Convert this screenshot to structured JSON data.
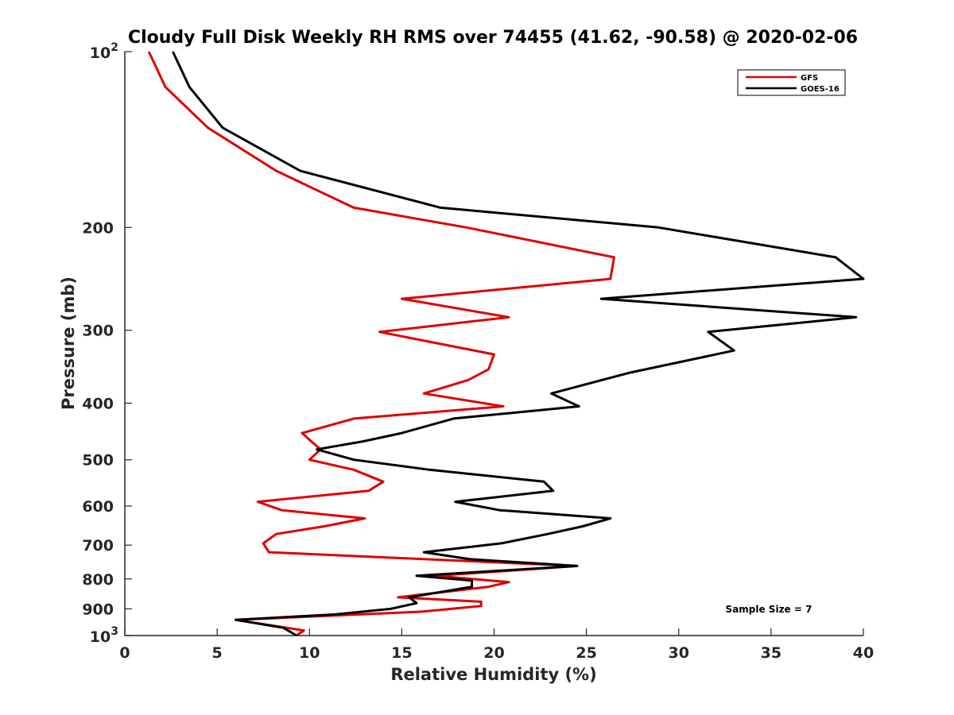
{
  "chart_data": {
    "type": "line",
    "title": "Cloudy Full Disk Weekly RH RMS over 74455 (41.62, -90.58) @ 2020-02-06",
    "xlabel": "Relative Humidity (%)",
    "ylabel": "Pressure (mb)",
    "xlim": [
      0,
      40
    ],
    "ylim": [
      100,
      1000
    ],
    "yscale": "log",
    "y_reversed": true,
    "grid": false,
    "legend_position": "top-right",
    "x_ticks": [
      "0",
      "5",
      "10",
      "15",
      "20",
      "25",
      "30",
      "35",
      "40"
    ],
    "y_ticks": [
      {
        "value": 100,
        "base": "10",
        "exp": "2"
      },
      {
        "value": 200,
        "label": "200"
      },
      {
        "value": 300,
        "label": "300"
      },
      {
        "value": 400,
        "label": "400"
      },
      {
        "value": 500,
        "label": "500"
      },
      {
        "value": 600,
        "label": "600"
      },
      {
        "value": 700,
        "label": "700"
      },
      {
        "value": 800,
        "label": "800"
      },
      {
        "value": 900,
        "label": "900"
      },
      {
        "value": 1000,
        "base": "10",
        "exp": "3"
      }
    ],
    "annotation": "Sample Size = 7",
    "series": [
      {
        "name": "GFS",
        "color": "#e00000",
        "points": [
          [
            1.3,
            100
          ],
          [
            2.2,
            115
          ],
          [
            4.5,
            135
          ],
          [
            8.2,
            160
          ],
          [
            12.4,
            185
          ],
          [
            18.5,
            200
          ],
          [
            26.5,
            225
          ],
          [
            26.3,
            245
          ],
          [
            15.0,
            265
          ],
          [
            20.8,
            285
          ],
          [
            13.8,
            302
          ],
          [
            20.0,
            330
          ],
          [
            19.7,
            350
          ],
          [
            18.6,
            365
          ],
          [
            16.2,
            385
          ],
          [
            20.5,
            405
          ],
          [
            12.4,
            425
          ],
          [
            9.6,
            450
          ],
          [
            10.1,
            465
          ],
          [
            10.6,
            480
          ],
          [
            10.0,
            500
          ],
          [
            12.4,
            520
          ],
          [
            14.0,
            545
          ],
          [
            13.2,
            565
          ],
          [
            7.2,
            590
          ],
          [
            8.5,
            610
          ],
          [
            13.0,
            630
          ],
          [
            10.8,
            650
          ],
          [
            8.2,
            670
          ],
          [
            7.5,
            695
          ],
          [
            7.8,
            720
          ],
          [
            24.5,
            760
          ],
          [
            16.8,
            790
          ],
          [
            20.8,
            810
          ],
          [
            19.7,
            825
          ],
          [
            14.8,
            860
          ],
          [
            19.3,
            875
          ],
          [
            19.3,
            890
          ],
          [
            16.1,
            910
          ],
          [
            6.0,
            940
          ],
          [
            9.7,
            980
          ],
          [
            9.3,
            1000
          ]
        ]
      },
      {
        "name": "GOES-16",
        "color": "#000000",
        "points": [
          [
            2.6,
            100
          ],
          [
            3.5,
            115
          ],
          [
            5.3,
            135
          ],
          [
            9.5,
            160
          ],
          [
            17.1,
            185
          ],
          [
            28.9,
            200
          ],
          [
            38.5,
            225
          ],
          [
            40.0,
            245
          ],
          [
            25.8,
            265
          ],
          [
            39.6,
            285
          ],
          [
            31.6,
            302
          ],
          [
            33.0,
            325
          ],
          [
            27.3,
            355
          ],
          [
            23.1,
            385
          ],
          [
            24.6,
            405
          ],
          [
            17.8,
            425
          ],
          [
            15.0,
            450
          ],
          [
            12.9,
            465
          ],
          [
            10.4,
            480
          ],
          [
            12.4,
            500
          ],
          [
            16.5,
            520
          ],
          [
            22.7,
            545
          ],
          [
            23.2,
            565
          ],
          [
            17.9,
            590
          ],
          [
            20.3,
            610
          ],
          [
            26.3,
            630
          ],
          [
            24.8,
            650
          ],
          [
            22.9,
            670
          ],
          [
            20.4,
            695
          ],
          [
            16.2,
            720
          ],
          [
            18.7,
            740
          ],
          [
            24.5,
            760
          ],
          [
            15.8,
            790
          ],
          [
            18.8,
            805
          ],
          [
            18.8,
            825
          ],
          [
            15.4,
            860
          ],
          [
            15.8,
            880
          ],
          [
            14.4,
            900
          ],
          [
            11.4,
            920
          ],
          [
            6.0,
            940
          ],
          [
            8.6,
            970
          ],
          [
            9.3,
            1000
          ]
        ]
      }
    ]
  }
}
